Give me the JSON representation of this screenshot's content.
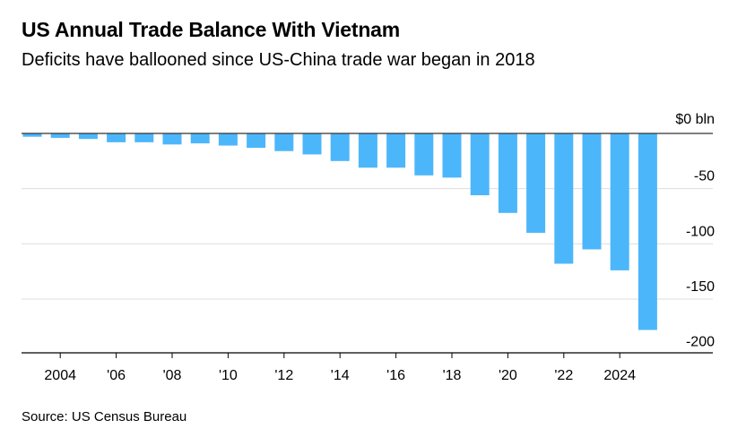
{
  "header": {
    "title": "US Annual Trade Balance With Vietnam",
    "subtitle": "Deficits have ballooned since US-China trade war began in 2018"
  },
  "footer": {
    "source": "Source: US Census Bureau"
  },
  "colors": {
    "bar": "#4cb6fb",
    "grid": "#dddddd",
    "zero_line": "#333333",
    "axis_line": "#000000",
    "text": "#000000"
  },
  "chart_data": {
    "type": "bar",
    "title": "US Annual Trade Balance With Vietnam",
    "subtitle": "Deficits have ballooned since US-China trade war began in 2018",
    "xlabel": "",
    "ylabel": "",
    "y_unit_label": "$0 bln",
    "categories": [
      "2003",
      "2004",
      "2005",
      "2006",
      "2007",
      "2008",
      "2009",
      "2010",
      "2011",
      "2012",
      "2013",
      "2014",
      "2015",
      "2016",
      "2017",
      "2018",
      "2019",
      "2020",
      "2021",
      "2022",
      "2023",
      "2024",
      "2025"
    ],
    "values": [
      -3,
      -4,
      -5,
      -8,
      -8,
      -10,
      -9,
      -11,
      -13,
      -16,
      -19,
      -25,
      -31,
      -31,
      -38,
      -40,
      -56,
      -72,
      -90,
      -118,
      -105,
      -124,
      -178
    ],
    "ylim": [
      -200,
      0
    ],
    "y_ticks": [
      {
        "value": 0,
        "label": "$0 bln"
      },
      {
        "value": -50,
        "label": "-50"
      },
      {
        "value": -100,
        "label": "-100"
      },
      {
        "value": -150,
        "label": "-150"
      },
      {
        "value": -200,
        "label": "-200"
      }
    ],
    "x_ticks": [
      {
        "category": "2004",
        "label": "2004"
      },
      {
        "category": "2006",
        "label": "'06"
      },
      {
        "category": "2008",
        "label": "'08"
      },
      {
        "category": "2010",
        "label": "'10"
      },
      {
        "category": "2012",
        "label": "'12"
      },
      {
        "category": "2014",
        "label": "'14"
      },
      {
        "category": "2016",
        "label": "'16"
      },
      {
        "category": "2018",
        "label": "'18"
      },
      {
        "category": "2020",
        "label": "'20"
      },
      {
        "category": "2022",
        "label": "'22"
      },
      {
        "category": "2024",
        "label": "2024"
      }
    ],
    "grid": true,
    "legend": "none"
  }
}
